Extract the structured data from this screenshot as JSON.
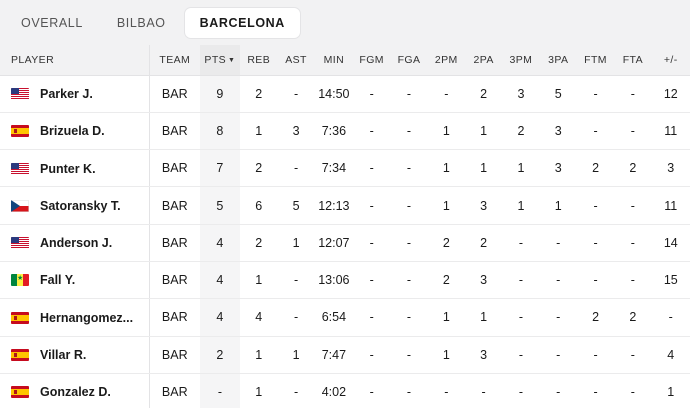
{
  "tabs": [
    {
      "label": "OVERALL",
      "active": false
    },
    {
      "label": "BILBAO",
      "active": false
    },
    {
      "label": "BARCELONA",
      "active": true
    }
  ],
  "columns": [
    "PLAYER",
    "TEAM",
    "PTS",
    "REB",
    "AST",
    "MIN",
    "FGM",
    "FGA",
    "2PM",
    "2PA",
    "3PM",
    "3PA",
    "FTM",
    "FTA",
    "+/-"
  ],
  "sorted_column": "PTS",
  "rows": [
    {
      "flag": "us",
      "player": "Parker J.",
      "team": "BAR",
      "pts": "9",
      "reb": "2",
      "ast": "-",
      "min": "14:50",
      "fgm": "-",
      "fga": "-",
      "p2m": "-",
      "p2a": "2",
      "p3m": "3",
      "p3a": "5",
      "ftm": "-",
      "fta": "-",
      "pm": "12"
    },
    {
      "flag": "es",
      "player": "Brizuela D.",
      "team": "BAR",
      "pts": "8",
      "reb": "1",
      "ast": "3",
      "min": "7:36",
      "fgm": "-",
      "fga": "-",
      "p2m": "1",
      "p2a": "1",
      "p3m": "2",
      "p3a": "3",
      "ftm": "-",
      "fta": "-",
      "pm": "11"
    },
    {
      "flag": "us",
      "player": "Punter K.",
      "team": "BAR",
      "pts": "7",
      "reb": "2",
      "ast": "-",
      "min": "7:34",
      "fgm": "-",
      "fga": "-",
      "p2m": "1",
      "p2a": "1",
      "p3m": "1",
      "p3a": "3",
      "ftm": "2",
      "fta": "2",
      "pm": "3"
    },
    {
      "flag": "cz",
      "player": "Satoransky T.",
      "team": "BAR",
      "pts": "5",
      "reb": "6",
      "ast": "5",
      "min": "12:13",
      "fgm": "-",
      "fga": "-",
      "p2m": "1",
      "p2a": "3",
      "p3m": "1",
      "p3a": "1",
      "ftm": "-",
      "fta": "-",
      "pm": "11"
    },
    {
      "flag": "us",
      "player": "Anderson J.",
      "team": "BAR",
      "pts": "4",
      "reb": "2",
      "ast": "1",
      "min": "12:07",
      "fgm": "-",
      "fga": "-",
      "p2m": "2",
      "p2a": "2",
      "p3m": "-",
      "p3a": "-",
      "ftm": "-",
      "fta": "-",
      "pm": "14"
    },
    {
      "flag": "sn",
      "player": "Fall Y.",
      "team": "BAR",
      "pts": "4",
      "reb": "1",
      "ast": "-",
      "min": "13:06",
      "fgm": "-",
      "fga": "-",
      "p2m": "2",
      "p2a": "3",
      "p3m": "-",
      "p3a": "-",
      "ftm": "-",
      "fta": "-",
      "pm": "15"
    },
    {
      "flag": "es",
      "player": "Hernangomez...",
      "team": "BAR",
      "pts": "4",
      "reb": "4",
      "ast": "-",
      "min": "6:54",
      "fgm": "-",
      "fga": "-",
      "p2m": "1",
      "p2a": "1",
      "p3m": "-",
      "p3a": "-",
      "ftm": "2",
      "fta": "2",
      "pm": "-"
    },
    {
      "flag": "es",
      "player": "Villar R.",
      "team": "BAR",
      "pts": "2",
      "reb": "1",
      "ast": "1",
      "min": "7:47",
      "fgm": "-",
      "fga": "-",
      "p2m": "1",
      "p2a": "3",
      "p3m": "-",
      "p3a": "-",
      "ftm": "-",
      "fta": "-",
      "pm": "4"
    },
    {
      "flag": "es",
      "player": "Gonzalez D.",
      "team": "BAR",
      "pts": "-",
      "reb": "1",
      "ast": "-",
      "min": "4:02",
      "fgm": "-",
      "fga": "-",
      "p2m": "-",
      "p2a": "-",
      "p3m": "-",
      "p3a": "-",
      "ftm": "-",
      "fta": "-",
      "pm": "1"
    }
  ]
}
